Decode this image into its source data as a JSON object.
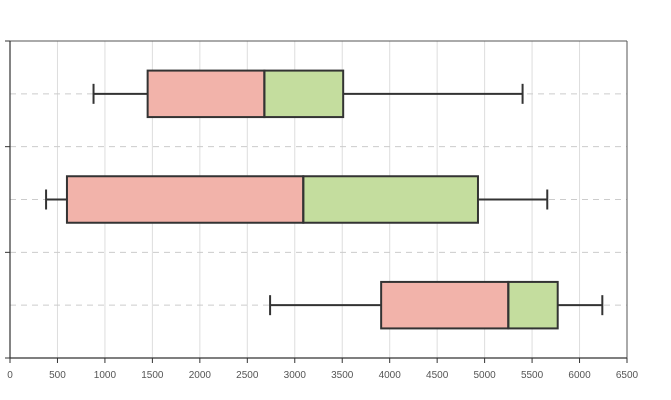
{
  "chart_data": {
    "type": "boxplot",
    "orientation": "horizontal",
    "title": "",
    "xlabel": "",
    "ylabel": "",
    "xlim": [
      0,
      6500
    ],
    "x_ticks": [
      0,
      500,
      1000,
      1500,
      2000,
      2500,
      3000,
      3500,
      4000,
      4500,
      5000,
      5500,
      6000,
      6500
    ],
    "grid": true,
    "legend": "none",
    "colors": {
      "lower_box": "#f2b3aa",
      "upper_box": "#c4dd9e",
      "stroke": "#333333",
      "gridline": "#dddddd",
      "median_line": "#cccccc"
    },
    "boxes": [
      {
        "whisker_low": 880,
        "q1": 1450,
        "median": 2680,
        "q3": 3510,
        "whisker_high": 5400
      },
      {
        "whisker_low": 380,
        "q1": 600,
        "median": 3090,
        "q3": 4930,
        "whisker_high": 5660
      },
      {
        "whisker_low": 2740,
        "q1": 3910,
        "median": 5250,
        "q3": 5770,
        "whisker_high": 6240
      }
    ]
  }
}
